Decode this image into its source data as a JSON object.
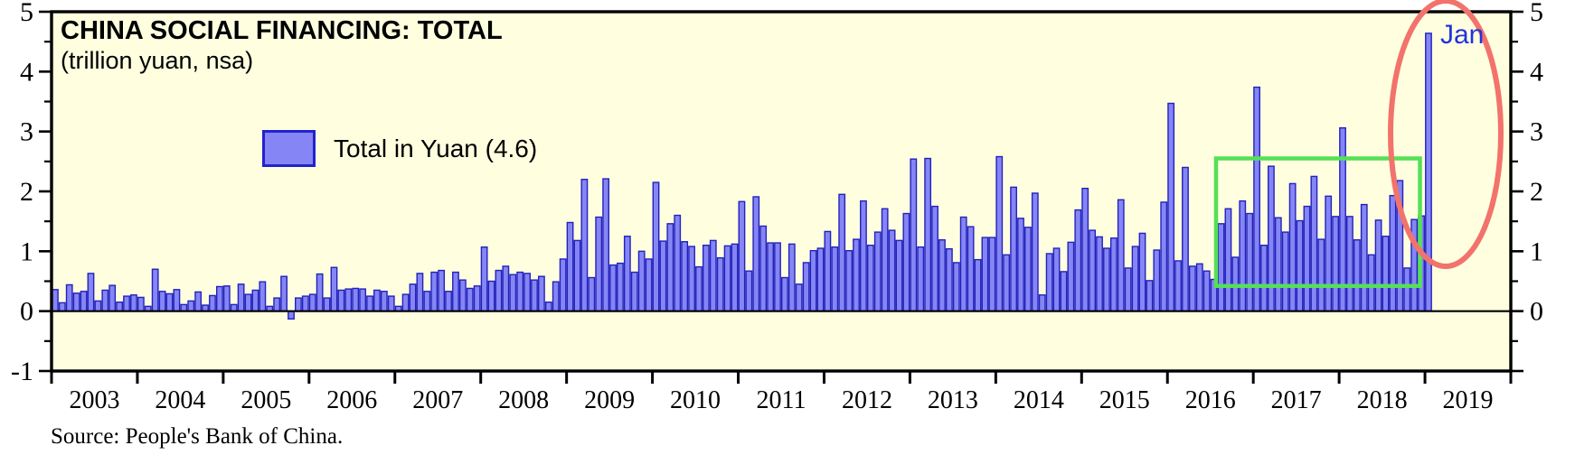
{
  "title": "CHINA SOCIAL FINANCING: TOTAL",
  "subtitle": "(trillion yuan, nsa)",
  "legend": {
    "label": "Total in Yuan (4.6)",
    "swatch_fill": "#8585F5",
    "swatch_border": "#2222CC"
  },
  "source_note": "Source: People's Bank of China.",
  "annotations": {
    "jan_label": {
      "text": "Jan",
      "color": "#2233DD"
    },
    "red_ellipse": {
      "color": "#F2736B",
      "meaning": "highlights Jan 2019 spike"
    },
    "green_box": {
      "color": "#55E055",
      "meaning": "highlights Aug 2016 - Dec 2018 range"
    }
  },
  "colors": {
    "plot_background": "#FFFFE0",
    "bar_fill": "#8585F5",
    "bar_border": "#2222BB",
    "frame": "#000000"
  },
  "chart_data": {
    "type": "bar",
    "title": "CHINA SOCIAL FINANCING: TOTAL",
    "subtitle": "(trillion yuan, nsa)",
    "unit": "trillion yuan",
    "start_month": "2003-01",
    "end_month": "2019-01",
    "ylim": [
      -1,
      5
    ],
    "yticks_left": [
      "5",
      "4",
      "3",
      "2",
      "1",
      "0",
      "-1"
    ],
    "yticks_left_values": [
      5,
      4,
      3,
      2,
      1,
      0,
      -1
    ],
    "yticks_right": [
      "5",
      "4",
      "3",
      "2",
      "1",
      "0"
    ],
    "yticks_right_values": [
      5,
      4,
      3,
      2,
      1,
      0
    ],
    "minor_ytick_values": [
      -0.5,
      0.5,
      1.5,
      2.5,
      3.5,
      4.5
    ],
    "x_year_labels": [
      "2003",
      "2004",
      "2005",
      "2006",
      "2007",
      "2008",
      "2009",
      "2010",
      "2011",
      "2012",
      "2013",
      "2014",
      "2015",
      "2016",
      "2017",
      "2018",
      "2019"
    ],
    "grid": false,
    "legend_position": "top-left",
    "series_name": "Total in Yuan",
    "latest_value": 4.6,
    "values_by_year": {
      "2003": [
        0.36,
        0.14,
        0.44,
        0.3,
        0.33,
        0.63,
        0.17,
        0.35,
        0.43,
        0.15,
        0.25,
        0.27
      ],
      "2004": [
        0.23,
        0.08,
        0.7,
        0.33,
        0.29,
        0.36,
        0.11,
        0.17,
        0.32,
        0.1,
        0.26,
        0.41
      ],
      "2005": [
        0.42,
        0.11,
        0.45,
        0.28,
        0.35,
        0.49,
        0.08,
        0.22,
        0.58,
        -0.13,
        0.22,
        0.25
      ],
      "2006": [
        0.28,
        0.62,
        0.22,
        0.73,
        0.35,
        0.37,
        0.38,
        0.37,
        0.25,
        0.35,
        0.33,
        0.25
      ],
      "2007": [
        0.08,
        0.28,
        0.45,
        0.63,
        0.33,
        0.65,
        0.68,
        0.33,
        0.65,
        0.52,
        0.38,
        0.42
      ],
      "2008": [
        1.07,
        0.5,
        0.68,
        0.75,
        0.61,
        0.65,
        0.63,
        0.52,
        0.58,
        0.15,
        0.49,
        0.87
      ],
      "2009": [
        1.48,
        1.18,
        2.2,
        0.56,
        1.57,
        2.21,
        0.77,
        0.8,
        1.25,
        0.65,
        1.0,
        0.87
      ],
      "2010": [
        2.15,
        1.17,
        1.46,
        1.6,
        1.16,
        1.08,
        0.74,
        1.1,
        1.18,
        0.89,
        1.09,
        1.12
      ],
      "2011": [
        1.83,
        0.67,
        1.91,
        1.42,
        1.14,
        1.14,
        0.56,
        1.12,
        0.45,
        0.81,
        1.01,
        1.05
      ],
      "2012": [
        1.33,
        1.07,
        1.95,
        1.01,
        1.2,
        1.84,
        1.1,
        1.32,
        1.71,
        1.35,
        1.18,
        1.63
      ],
      "2013": [
        2.54,
        1.07,
        2.55,
        1.75,
        1.19,
        1.04,
        0.81,
        1.57,
        1.41,
        0.86,
        1.23,
        1.23
      ],
      "2014": [
        2.58,
        0.94,
        2.07,
        1.55,
        1.4,
        1.97,
        0.27,
        0.96,
        1.05,
        0.66,
        1.15,
        1.69
      ],
      "2015": [
        2.05,
        1.35,
        1.24,
        1.05,
        1.22,
        1.86,
        0.72,
        1.08,
        1.3,
        0.51,
        1.02,
        1.82
      ],
      "2016": [
        3.47,
        0.84,
        2.4,
        0.75,
        0.79,
        0.67,
        0.53,
        1.46,
        1.71,
        0.9,
        1.84,
        1.63
      ],
      "2017": [
        3.74,
        1.1,
        2.42,
        1.56,
        1.32,
        2.13,
        1.51,
        1.75,
        2.25,
        1.2,
        1.92,
        1.58
      ],
      "2018": [
        3.06,
        1.58,
        1.19,
        1.78,
        0.94,
        1.52,
        1.25,
        1.93,
        2.18,
        0.72,
        1.53,
        1.59
      ],
      "2019": [
        4.64
      ]
    }
  }
}
